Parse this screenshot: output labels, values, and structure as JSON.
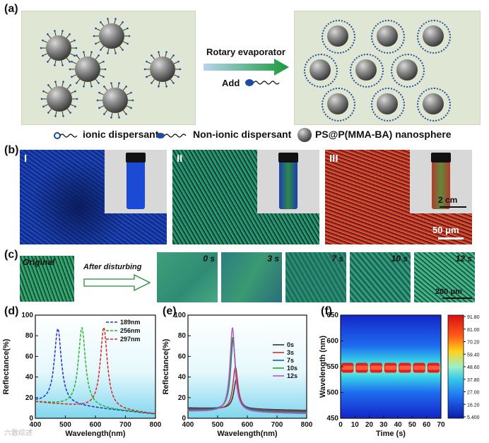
{
  "panel_labels": {
    "a": "(a)",
    "b": "(b)",
    "c": "(c)",
    "d": "(d)",
    "e": "(e)",
    "f": "(f)"
  },
  "panel_a": {
    "process_top": "Rotary evaporator",
    "process_bottom": "Add",
    "legend": {
      "ionic": "ionic dispersant",
      "nonionic": "Non-ionic dispersant",
      "sphere": "PS@P(MMA-BA) nanosphere"
    }
  },
  "panel_b": {
    "labels": [
      "I",
      "II",
      "III"
    ],
    "scale_inset": "2 cm",
    "scale_main": "50 μm"
  },
  "panel_c": {
    "original": "Original",
    "arrow_text": "After disturbing",
    "times": [
      "0 s",
      "3 s",
      "7 s",
      "10 s",
      "12 s"
    ],
    "scale": "200 μm"
  },
  "colors": {
    "blue_dash": "#2233cc",
    "green_dash": "#22bb22",
    "red_dash": "#dd2222",
    "s0": "#333333",
    "s3": "#cc3333",
    "s7": "#2255cc",
    "s10": "#22aa22",
    "s12": "#bb55cc"
  },
  "chart_data": [
    {
      "panel": "d",
      "type": "line",
      "xlabel": "Wavelength(nm)",
      "ylabel": "Reflectance(%)",
      "xlim": [
        400,
        800
      ],
      "ylim": [
        0,
        100
      ],
      "xticks": [
        400,
        500,
        600,
        700,
        800
      ],
      "yticks": [
        0,
        20,
        40,
        60,
        80,
        100
      ],
      "series": [
        {
          "name": "189nm",
          "peak_x": 475,
          "peak_y": 87
        },
        {
          "name": "256nm",
          "peak_x": 555,
          "peak_y": 88
        },
        {
          "name": "297nm",
          "peak_x": 628,
          "peak_y": 88
        }
      ]
    },
    {
      "panel": "e",
      "type": "line",
      "xlabel": "Wavelength(nm)",
      "ylabel": "Reflectance(%)",
      "xlim": [
        400,
        800
      ],
      "ylim": [
        0,
        100
      ],
      "xticks": [
        400,
        500,
        600,
        700,
        800
      ],
      "yticks": [
        0,
        20,
        40,
        60,
        80,
        100
      ],
      "series": [
        {
          "name": "0s",
          "peak_x": 563,
          "peak_y": 38
        },
        {
          "name": "3s",
          "peak_x": 560,
          "peak_y": 50
        },
        {
          "name": "7s",
          "peak_x": 552,
          "peak_y": 76
        },
        {
          "name": "10s",
          "peak_x": 551,
          "peak_y": 79
        },
        {
          "name": "12s",
          "peak_x": 550,
          "peak_y": 88
        }
      ]
    },
    {
      "panel": "f",
      "type": "heatmap",
      "xlabel": "Time (s)",
      "ylabel": "Wavelength (nm)",
      "xlim": [
        0,
        70
      ],
      "ylim": [
        450,
        650
      ],
      "xticks": [
        0,
        10,
        20,
        30,
        40,
        50,
        60,
        70
      ],
      "yticks": [
        450,
        500,
        550,
        600,
        650
      ],
      "colorbar_ticks": [
        "91.80",
        "81.00",
        "70.20",
        "59.40",
        "48.60",
        "37.80",
        "27.00",
        "16.20",
        "5.400"
      ],
      "band_center_nm": 548
    }
  ],
  "watermark": "六散综述"
}
